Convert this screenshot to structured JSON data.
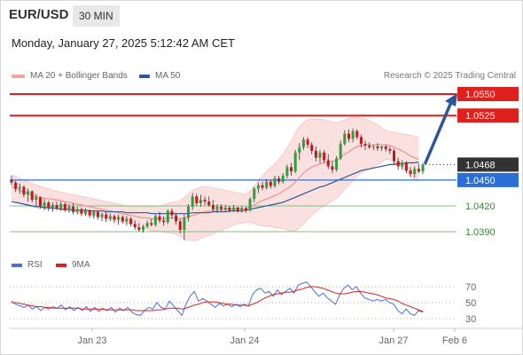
{
  "header": {
    "symbol": "EUR/USD",
    "timeframe": "30 MIN",
    "datetime": "Monday, January 27, 2025 5:12:42 AM CET"
  },
  "legend": {
    "ma20": {
      "label": "MA 20 + Bollinger Bands",
      "color": "#f4a3a3"
    },
    "ma50": {
      "label": "MA 50",
      "color": "#2b5797"
    }
  },
  "credit": "Research © 2025 Trading Central",
  "price_levels": [
    {
      "value": "1.0550",
      "kind": "resistance",
      "color": "#e0201c"
    },
    {
      "value": "1.0525",
      "kind": "resistance",
      "color": "#e0201c"
    },
    {
      "value": "1.0468",
      "kind": "current",
      "color": "#333333"
    },
    {
      "value": "1.0450",
      "kind": "pivot",
      "color": "#2b6fd6"
    },
    {
      "value": "1.0420",
      "kind": "support",
      "color": "#2e8b2e"
    },
    {
      "value": "1.0390",
      "kind": "support",
      "color": "#2e8b2e"
    }
  ],
  "rsi_legend": {
    "rsi": {
      "label": "RSI",
      "color": "#4a6fd8"
    },
    "ma9": {
      "label": "9MA",
      "color": "#e0201c"
    }
  },
  "rsi_levels": [
    "70",
    "50",
    "30"
  ],
  "x_axis": [
    "Jan 23",
    "Jan 24",
    "Jan 27",
    "Feb 6"
  ],
  "colors": {
    "candle_up": "#2e9e3e",
    "candle_down": "#c8161d",
    "band_fill": "#fbe0e0",
    "arrow": "#2b5797"
  },
  "chart_data": {
    "type": "candlestick",
    "series": [
      {
        "name": "MA 20 + Bollinger Bands"
      },
      {
        "name": "MA 50"
      }
    ],
    "y_range": [
      1.0378,
      1.0558
    ],
    "candles": [
      [
        1.045,
        1.0455,
        1.0444,
        1.0447
      ],
      [
        1.0447,
        1.0449,
        1.0436,
        1.044
      ],
      [
        1.044,
        1.0446,
        1.0434,
        1.0442
      ],
      [
        1.0442,
        1.0444,
        1.043,
        1.0433
      ],
      [
        1.0433,
        1.044,
        1.0425,
        1.0437
      ],
      [
        1.0437,
        1.0438,
        1.0424,
        1.0427
      ],
      [
        1.0427,
        1.0434,
        1.042,
        1.043
      ],
      [
        1.043,
        1.0431,
        1.0417,
        1.042
      ],
      [
        1.042,
        1.0428,
        1.0415,
        1.0424
      ],
      [
        1.0424,
        1.0426,
        1.0414,
        1.0418
      ],
      [
        1.0418,
        1.0424,
        1.0413,
        1.0421
      ],
      [
        1.0421,
        1.0425,
        1.0415,
        1.0417
      ],
      [
        1.0417,
        1.0425,
        1.0414,
        1.0422
      ],
      [
        1.0422,
        1.0424,
        1.0413,
        1.0415
      ],
      [
        1.0415,
        1.0422,
        1.0412,
        1.0419
      ],
      [
        1.0419,
        1.0423,
        1.041,
        1.0413
      ],
      [
        1.0413,
        1.0419,
        1.041,
        1.0416
      ],
      [
        1.0416,
        1.0418,
        1.0408,
        1.0411
      ],
      [
        1.0411,
        1.0417,
        1.0408,
        1.0415
      ],
      [
        1.0415,
        1.0416,
        1.0406,
        1.0409
      ],
      [
        1.0409,
        1.0415,
        1.0405,
        1.0413
      ],
      [
        1.0413,
        1.0414,
        1.0404,
        1.0407
      ],
      [
        1.0407,
        1.0412,
        1.0402,
        1.041
      ],
      [
        1.041,
        1.0413,
        1.0401,
        1.0405
      ],
      [
        1.0405,
        1.0411,
        1.0402,
        1.0408
      ],
      [
        1.0408,
        1.041,
        1.04,
        1.0404
      ],
      [
        1.0404,
        1.041,
        1.0398,
        1.0407
      ],
      [
        1.0407,
        1.0409,
        1.0399,
        1.0402
      ],
      [
        1.0402,
        1.0408,
        1.0397,
        1.0405
      ],
      [
        1.0405,
        1.0407,
        1.0396,
        1.0399
      ],
      [
        1.0399,
        1.0403,
        1.0392,
        1.0395
      ],
      [
        1.0395,
        1.04,
        1.039,
        1.0392
      ],
      [
        1.0392,
        1.0398,
        1.0389,
        1.0396
      ],
      [
        1.0396,
        1.0403,
        1.0394,
        1.04
      ],
      [
        1.04,
        1.0405,
        1.0396,
        1.0398
      ],
      [
        1.0398,
        1.041,
        1.0396,
        1.0408
      ],
      [
        1.0408,
        1.0413,
        1.04,
        1.0403
      ],
      [
        1.0403,
        1.0408,
        1.0397,
        1.0401
      ],
      [
        1.0401,
        1.0416,
        1.0399,
        1.0414
      ],
      [
        1.0414,
        1.0417,
        1.0405,
        1.0409
      ],
      [
        1.0409,
        1.0412,
        1.0398,
        1.0402
      ],
      [
        1.0402,
        1.0405,
        1.0388,
        1.0392
      ],
      [
        1.0392,
        1.041,
        1.038,
        1.0406
      ],
      [
        1.0406,
        1.0422,
        1.0402,
        1.0419
      ],
      [
        1.0419,
        1.0435,
        1.0415,
        1.0431
      ],
      [
        1.0431,
        1.0434,
        1.042,
        1.0423
      ],
      [
        1.0423,
        1.0433,
        1.0419,
        1.0427
      ],
      [
        1.0427,
        1.0431,
        1.0421,
        1.0425
      ],
      [
        1.0425,
        1.0431,
        1.0419,
        1.0421
      ],
      [
        1.0421,
        1.0427,
        1.0414,
        1.0416
      ],
      [
        1.0416,
        1.0422,
        1.0412,
        1.0419
      ],
      [
        1.0419,
        1.0422,
        1.0413,
        1.0416
      ],
      [
        1.0416,
        1.0421,
        1.0413,
        1.0418
      ],
      [
        1.0418,
        1.042,
        1.0412,
        1.0415
      ],
      [
        1.0415,
        1.0421,
        1.0413,
        1.0418
      ],
      [
        1.0418,
        1.0419,
        1.0412,
        1.0414
      ],
      [
        1.0414,
        1.042,
        1.0412,
        1.0417
      ],
      [
        1.0417,
        1.0419,
        1.0412,
        1.0415
      ],
      [
        1.0415,
        1.043,
        1.0413,
        1.0428
      ],
      [
        1.0428,
        1.0442,
        1.0424,
        1.044
      ],
      [
        1.044,
        1.0447,
        1.0435,
        1.0444
      ],
      [
        1.0444,
        1.0448,
        1.0438,
        1.0441
      ],
      [
        1.0441,
        1.0451,
        1.0439,
        1.0448
      ],
      [
        1.0448,
        1.045,
        1.044,
        1.0443
      ],
      [
        1.0443,
        1.0455,
        1.0441,
        1.0452
      ],
      [
        1.0452,
        1.0455,
        1.0445,
        1.0448
      ],
      [
        1.0448,
        1.0458,
        1.0446,
        1.0455
      ],
      [
        1.0455,
        1.0468,
        1.0452,
        1.0465
      ],
      [
        1.0465,
        1.047,
        1.0455,
        1.046
      ],
      [
        1.046,
        1.0485,
        1.0458,
        1.0482
      ],
      [
        1.0482,
        1.0493,
        1.0473,
        1.0488
      ],
      [
        1.0488,
        1.05,
        1.0485,
        1.0497
      ],
      [
        1.0497,
        1.05,
        1.0487,
        1.0491
      ],
      [
        1.0491,
        1.0494,
        1.048,
        1.0484
      ],
      [
        1.0484,
        1.0489,
        1.0472,
        1.0476
      ],
      [
        1.0476,
        1.0485,
        1.047,
        1.0482
      ],
      [
        1.0482,
        1.0485,
        1.047,
        1.0473
      ],
      [
        1.0473,
        1.048,
        1.0463,
        1.0466
      ],
      [
        1.0466,
        1.0472,
        1.0458,
        1.0462
      ],
      [
        1.0462,
        1.0478,
        1.046,
        1.0475
      ],
      [
        1.0475,
        1.0496,
        1.0473,
        1.0492
      ],
      [
        1.0492,
        1.0508,
        1.049,
        1.0504
      ],
      [
        1.0504,
        1.0509,
        1.0494,
        1.0498
      ],
      [
        1.0498,
        1.051,
        1.0494,
        1.0507
      ],
      [
        1.0507,
        1.0509,
        1.0497,
        1.05
      ],
      [
        1.05,
        1.0503,
        1.0488,
        1.0492
      ],
      [
        1.0492,
        1.0496,
        1.0485,
        1.049
      ],
      [
        1.049,
        1.0494,
        1.0486,
        1.0488
      ],
      [
        1.0488,
        1.0491,
        1.0485,
        1.0489
      ],
      [
        1.0489,
        1.0493,
        1.0484,
        1.0487
      ],
      [
        1.0487,
        1.049,
        1.0484,
        1.0489
      ],
      [
        1.0489,
        1.0491,
        1.0483,
        1.0486
      ],
      [
        1.0486,
        1.0489,
        1.048,
        1.0484
      ],
      [
        1.0484,
        1.0486,
        1.0468,
        1.0472
      ],
      [
        1.0472,
        1.0476,
        1.0462,
        1.0466
      ],
      [
        1.0466,
        1.0473,
        1.0462,
        1.047
      ],
      [
        1.047,
        1.0472,
        1.0458,
        1.0461
      ],
      [
        1.0461,
        1.0465,
        1.0454,
        1.0457
      ],
      [
        1.0457,
        1.0466,
        1.0453,
        1.0463
      ],
      [
        1.0463,
        1.0469,
        1.0458,
        1.046
      ],
      [
        1.046,
        1.047,
        1.0457,
        1.0468
      ]
    ],
    "ma20": [
      1.0442,
      1.044,
      1.0438,
      1.0436,
      1.0434,
      1.0432,
      1.0431,
      1.043,
      1.0429,
      1.0428,
      1.0428,
      1.0427,
      1.0426,
      1.0425,
      1.0424,
      1.0423,
      1.0422,
      1.0421,
      1.042,
      1.0419,
      1.0418,
      1.0417,
      1.0416,
      1.0415,
      1.0414,
      1.0413,
      1.0412,
      1.0411,
      1.041,
      1.0409,
      1.0408,
      1.0407,
      1.0406,
      1.0406,
      1.0405,
      1.0405,
      1.0405,
      1.0405,
      1.0406,
      1.0406,
      1.0406,
      1.0405,
      1.0406,
      1.0407,
      1.0409,
      1.041,
      1.0412,
      1.0413,
      1.0414,
      1.0414,
      1.0415,
      1.0415,
      1.0416,
      1.0416,
      1.0417,
      1.0417,
      1.0417,
      1.0417,
      1.0419,
      1.0421,
      1.0424,
      1.0426,
      1.0428,
      1.043,
      1.0432,
      1.0434,
      1.0437,
      1.044,
      1.0443,
      1.0448,
      1.0453,
      1.0458,
      1.0462,
      1.0465,
      1.0467,
      1.0469,
      1.047,
      1.0471,
      1.0472,
      1.0473,
      1.0476,
      1.048,
      1.0483,
      1.0486,
      1.0489,
      1.049,
      1.0491,
      1.0491,
      1.0491,
      1.0491,
      1.0491,
      1.0491,
      1.049,
      1.0488,
      1.0486,
      1.0484,
      1.0481,
      1.0478,
      1.0476,
      1.0474
    ],
    "bb_upper": [
      1.0456,
      1.0454,
      1.0452,
      1.045,
      1.0448,
      1.0446,
      1.0444,
      1.0443,
      1.0441,
      1.044,
      1.0438,
      1.0437,
      1.0436,
      1.0435,
      1.0434,
      1.0433,
      1.0432,
      1.0431,
      1.043,
      1.0429,
      1.0428,
      1.0427,
      1.0426,
      1.0425,
      1.0424,
      1.0423,
      1.0422,
      1.0421,
      1.042,
      1.0419,
      1.0419,
      1.0419,
      1.0419,
      1.0419,
      1.0419,
      1.0419,
      1.042,
      1.0421,
      1.0423,
      1.0424,
      1.0425,
      1.0426,
      1.043,
      1.0434,
      1.0438,
      1.044,
      1.0442,
      1.0442,
      1.0442,
      1.0441,
      1.044,
      1.0439,
      1.0438,
      1.0437,
      1.0436,
      1.0435,
      1.0434,
      1.0433,
      1.0437,
      1.0443,
      1.045,
      1.0455,
      1.046,
      1.0464,
      1.0469,
      1.0474,
      1.048,
      1.0488,
      1.0495,
      1.0505,
      1.0512,
      1.0517,
      1.052,
      1.0521,
      1.0521,
      1.0521,
      1.052,
      1.0519,
      1.0518,
      1.0517,
      1.0518,
      1.052,
      1.0522,
      1.0523,
      1.0523,
      1.0522,
      1.0521,
      1.0519,
      1.0517,
      1.0514,
      1.0511,
      1.0508,
      1.0506,
      1.0506,
      1.0505,
      1.0504,
      1.0503,
      1.0502,
      1.0501,
      1.05
    ],
    "bb_lower": [
      1.0428,
      1.0426,
      1.0424,
      1.0422,
      1.042,
      1.0418,
      1.0418,
      1.0417,
      1.0417,
      1.0416,
      1.0418,
      1.0417,
      1.0416,
      1.0415,
      1.0414,
      1.0413,
      1.0412,
      1.0411,
      1.041,
      1.0409,
      1.0408,
      1.0407,
      1.0406,
      1.0405,
      1.0404,
      1.0403,
      1.0402,
      1.0401,
      1.04,
      1.0399,
      1.0397,
      1.0395,
      1.0393,
      1.0393,
      1.0391,
      1.0391,
      1.039,
      1.0389,
      1.0389,
      1.0388,
      1.0387,
      1.0384,
      1.0382,
      1.038,
      1.038,
      1.038,
      1.0382,
      1.0384,
      1.0386,
      1.0387,
      1.039,
      1.0391,
      1.0394,
      1.0395,
      1.0398,
      1.0399,
      1.04,
      1.0401,
      1.0401,
      1.0399,
      1.0398,
      1.0397,
      1.0396,
      1.0396,
      1.0395,
      1.0394,
      1.0394,
      1.0392,
      1.0391,
      1.0391,
      1.0394,
      1.0399,
      1.0404,
      1.0409,
      1.0413,
      1.0417,
      1.042,
      1.0423,
      1.0426,
      1.0429,
      1.0434,
      1.044,
      1.0444,
      1.0449,
      1.0455,
      1.0458,
      1.0461,
      1.0463,
      1.0465,
      1.0468,
      1.0471,
      1.0474,
      1.0474,
      1.047,
      1.0467,
      1.0464,
      1.0459,
      1.0454,
      1.0451,
      1.0448
    ],
    "ma50": [
      1.0425,
      1.0424,
      1.0423,
      1.0422,
      1.0421,
      1.042,
      1.0419,
      1.0419,
      1.0418,
      1.0418,
      1.0417,
      1.0417,
      1.0416,
      1.0416,
      1.0416,
      1.0415,
      1.0415,
      1.0415,
      1.0415,
      1.0414,
      1.0414,
      1.0414,
      1.0414,
      1.0413,
      1.0413,
      1.0413,
      1.0413,
      1.0413,
      1.0412,
      1.0412,
      1.0412,
      1.0412,
      1.0412,
      1.0412,
      1.0411,
      1.0411,
      1.0411,
      1.0411,
      1.0411,
      1.0411,
      1.0411,
      1.0411,
      1.0411,
      1.0411,
      1.0412,
      1.0412,
      1.0412,
      1.0412,
      1.0412,
      1.0413,
      1.0413,
      1.0413,
      1.0413,
      1.0414,
      1.0414,
      1.0414,
      1.0414,
      1.0415,
      1.0416,
      1.0417,
      1.0418,
      1.0419,
      1.042,
      1.0421,
      1.0422,
      1.0423,
      1.0424,
      1.0426,
      1.0428,
      1.043,
      1.0432,
      1.0434,
      1.0436,
      1.0438,
      1.044,
      1.0442,
      1.0443,
      1.0445,
      1.0447,
      1.0449,
      1.0451,
      1.0453,
      1.0455,
      1.0457,
      1.0459,
      1.0461,
      1.0462,
      1.0463,
      1.0464,
      1.0465,
      1.0466,
      1.0467,
      1.0468,
      1.0468,
      1.0469,
      1.0469,
      1.047,
      1.047,
      1.047,
      1.0471
    ],
    "rsi": [
      52,
      48,
      46,
      44,
      47,
      42,
      45,
      40,
      44,
      42,
      45,
      43,
      47,
      41,
      45,
      40,
      44,
      40,
      45,
      39,
      44,
      39,
      43,
      40,
      44,
      38,
      43,
      40,
      44,
      38,
      35,
      34,
      40,
      44,
      42,
      50,
      44,
      42,
      52,
      46,
      40,
      34,
      48,
      58,
      64,
      52,
      55,
      52,
      48,
      44,
      49,
      46,
      48,
      45,
      48,
      45,
      48,
      46,
      60,
      66,
      68,
      62,
      64,
      58,
      66,
      60,
      64,
      68,
      62,
      72,
      74,
      76,
      70,
      64,
      58,
      62,
      56,
      52,
      48,
      60,
      68,
      72,
      66,
      70,
      62,
      56,
      54,
      52,
      54,
      52,
      54,
      50,
      48,
      40,
      36,
      42,
      36,
      34,
      40,
      38
    ],
    "rsi_ma9": [
      50,
      50,
      49,
      48,
      47,
      46,
      45,
      45,
      44,
      44,
      43,
      43,
      43,
      43,
      43,
      43,
      43,
      42,
      42,
      42,
      42,
      42,
      42,
      41,
      41,
      41,
      41,
      41,
      41,
      41,
      40,
      40,
      40,
      40,
      40,
      41,
      41,
      42,
      43,
      43,
      43,
      42,
      43,
      45,
      47,
      48,
      50,
      51,
      51,
      51,
      50,
      49,
      48,
      48,
      47,
      47,
      47,
      46,
      48,
      50,
      53,
      56,
      58,
      60,
      61,
      62,
      63,
      63,
      64,
      66,
      67,
      69,
      70,
      70,
      69,
      68,
      66,
      64,
      62,
      61,
      61,
      62,
      63,
      64,
      64,
      63,
      62,
      61,
      60,
      58,
      56,
      55,
      54,
      52,
      49,
      47,
      45,
      43,
      41,
      39
    ]
  }
}
